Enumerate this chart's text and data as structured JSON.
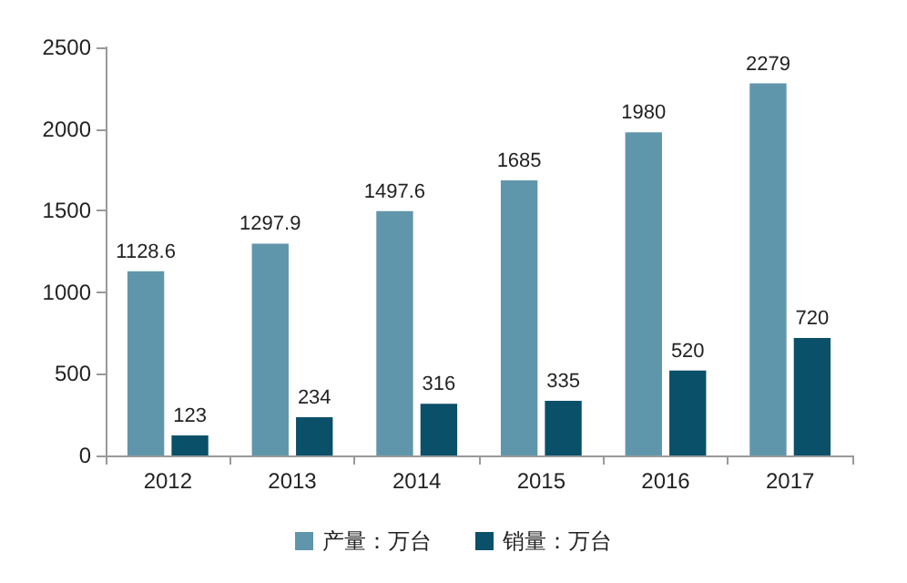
{
  "chart_data": {
    "type": "bar",
    "categories": [
      "2012",
      "2013",
      "2014",
      "2015",
      "2016",
      "2017"
    ],
    "series": [
      {
        "name": "产量：万台",
        "color": "#6096ab",
        "values": [
          1128.6,
          1297.9,
          1497.6,
          1685,
          1980,
          2279
        ]
      },
      {
        "name": "销量：万台",
        "color": "#0b5069",
        "values": [
          123,
          234,
          316,
          335,
          520,
          720
        ]
      }
    ],
    "ylim": [
      0,
      2500
    ],
    "yticks": [
      0,
      500,
      1000,
      1500,
      2000,
      2500
    ],
    "grid": false,
    "legend": "bottom",
    "data_labels": true
  }
}
